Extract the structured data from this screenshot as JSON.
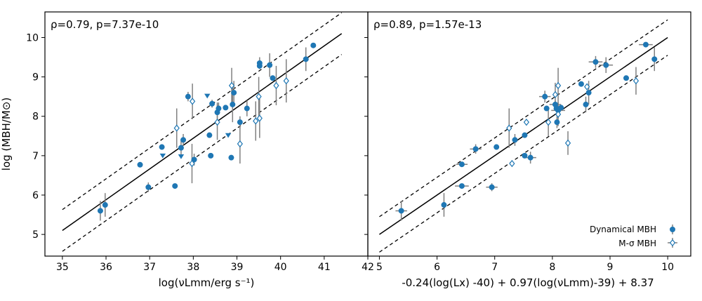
{
  "chart_data": [
    {
      "type": "scatter",
      "annotation": "ρ=0.79, p=7.37e-10",
      "xlabel": "log(νLmm/erg s⁻¹)",
      "ylabel": "log (MBH/M⊙)",
      "xlim": [
        34.6,
        42.0
      ],
      "ylim": [
        4.45,
        10.65
      ],
      "xticks": [
        35,
        36,
        37,
        38,
        39,
        40,
        41,
        42
      ],
      "yticks": [
        5,
        6,
        7,
        8,
        9,
        10
      ],
      "fit_line": [
        [
          35.0,
          5.1
        ],
        [
          41.4,
          10.1
        ]
      ],
      "scatter_offset": 0.53,
      "series": [
        {
          "marker": "filled-circle",
          "points": [
            {
              "x": 35.87,
              "y": 5.6,
              "err": 0.25
            },
            {
              "x": 35.98,
              "y": 5.75,
              "err": 0.3
            },
            {
              "x": 36.78,
              "y": 6.77
            },
            {
              "x": 36.97,
              "y": 6.2,
              "err": 0.12
            },
            {
              "x": 37.28,
              "y": 7.22
            },
            {
              "x": 37.58,
              "y": 6.23
            },
            {
              "x": 37.72,
              "y": 7.2,
              "err": 0.2
            },
            {
              "x": 37.77,
              "y": 7.4,
              "err": 0.15
            },
            {
              "x": 37.88,
              "y": 8.5,
              "err": 0.12
            },
            {
              "x": 38.02,
              "y": 6.9,
              "err": 0.15
            },
            {
              "x": 38.37,
              "y": 7.52
            },
            {
              "x": 38.4,
              "y": 7.0
            },
            {
              "x": 38.43,
              "y": 8.32,
              "err": 0.1
            },
            {
              "x": 38.55,
              "y": 8.1,
              "err": 0.25
            },
            {
              "x": 38.58,
              "y": 8.2,
              "err": 0.15
            },
            {
              "x": 38.74,
              "y": 8.22
            },
            {
              "x": 38.87,
              "y": 6.95
            },
            {
              "x": 38.9,
              "y": 8.3,
              "err": 0.45
            },
            {
              "x": 38.93,
              "y": 8.6,
              "err": 0.3
            },
            {
              "x": 39.07,
              "y": 7.85,
              "err": 0.15
            },
            {
              "x": 39.23,
              "y": 8.2,
              "err": 0.2
            },
            {
              "x": 39.52,
              "y": 9.35,
              "err": 0.15
            },
            {
              "x": 39.52,
              "y": 9.28
            },
            {
              "x": 39.75,
              "y": 9.3,
              "err": 0.3
            },
            {
              "x": 39.82,
              "y": 8.97
            },
            {
              "x": 40.58,
              "y": 9.45,
              "err": 0.3
            },
            {
              "x": 40.75,
              "y": 9.8
            }
          ]
        },
        {
          "marker": "triangle-down",
          "points": [
            {
              "x": 37.3,
              "y": 7.0
            },
            {
              "x": 37.72,
              "y": 6.98
            },
            {
              "x": 38.32,
              "y": 8.52
            },
            {
              "x": 38.8,
              "y": 7.52
            }
          ]
        },
        {
          "marker": "open-diamond",
          "points": [
            {
              "x": 37.62,
              "y": 7.7,
              "err": 0.5
            },
            {
              "x": 37.97,
              "y": 6.8,
              "err": 0.5
            },
            {
              "x": 37.98,
              "y": 8.38,
              "err": 0.45
            },
            {
              "x": 38.55,
              "y": 7.85,
              "err": 0.45
            },
            {
              "x": 38.88,
              "y": 8.78,
              "err": 0.45
            },
            {
              "x": 39.07,
              "y": 7.3,
              "err": 0.5
            },
            {
              "x": 39.43,
              "y": 7.88,
              "err": 0.5
            },
            {
              "x": 39.52,
              "y": 7.95,
              "err": 0.5
            },
            {
              "x": 39.5,
              "y": 8.5,
              "err": 0.5
            },
            {
              "x": 39.9,
              "y": 8.78,
              "err": 0.5
            },
            {
              "x": 40.13,
              "y": 8.9,
              "err": 0.55
            }
          ]
        }
      ]
    },
    {
      "type": "scatter",
      "annotation": "ρ=0.89, p=1.57e-13",
      "xlabel": "-0.24(log(Lx) -40) + 0.97(log(νLmm)-39) + 8.37",
      "ylabel": "",
      "xlim": [
        4.8,
        10.4
      ],
      "ylim": [
        4.45,
        10.65
      ],
      "xticks": [
        5,
        6,
        7,
        8,
        9,
        10
      ],
      "yticks": [
        5,
        6,
        7,
        8,
        9,
        10
      ],
      "fit_line": [
        [
          5.0,
          5.0
        ],
        [
          10.0,
          10.0
        ]
      ],
      "scatter_offset": 0.45,
      "legend": {
        "position": "lower-right",
        "entries": [
          {
            "label": "Dynamical MBH",
            "marker": "filled-circle"
          },
          {
            "label": "M-σ MBH",
            "marker": "open-diamond"
          }
        ]
      },
      "series": [
        {
          "name": "Dynamical MBH",
          "marker": "filled-circle",
          "points": [
            {
              "x": 5.38,
              "y": 5.6,
              "err": 0.25,
              "xerr": 0.1
            },
            {
              "x": 6.12,
              "y": 5.75,
              "err": 0.3
            },
            {
              "x": 6.43,
              "y": 6.78,
              "xerr": 0.1
            },
            {
              "x": 6.43,
              "y": 6.23,
              "xerr": 0.12
            },
            {
              "x": 6.67,
              "y": 7.17,
              "err": 0.12,
              "xerr": 0.1
            },
            {
              "x": 6.95,
              "y": 6.2,
              "err": 0.1,
              "xerr": 0.1
            },
            {
              "x": 7.03,
              "y": 7.22
            },
            {
              "x": 7.35,
              "y": 7.4,
              "err": 0.15
            },
            {
              "x": 7.52,
              "y": 7.52
            },
            {
              "x": 7.52,
              "y": 7.0
            },
            {
              "x": 7.62,
              "y": 6.95,
              "err": 0.15,
              "xerr": 0.1
            },
            {
              "x": 7.87,
              "y": 8.5,
              "err": 0.15,
              "xerr": 0.1
            },
            {
              "x": 7.9,
              "y": 8.2
            },
            {
              "x": 8.05,
              "y": 8.3,
              "err": 0.1,
              "xerr": 0.1
            },
            {
              "x": 8.07,
              "y": 8.2
            },
            {
              "x": 8.08,
              "y": 7.85,
              "err": 0.15
            },
            {
              "x": 8.1,
              "y": 8.15,
              "err": 0.2,
              "xerr": 0.12
            },
            {
              "x": 8.15,
              "y": 8.22
            },
            {
              "x": 8.5,
              "y": 8.82
            },
            {
              "x": 8.58,
              "y": 8.3,
              "err": 0.2
            },
            {
              "x": 8.63,
              "y": 8.6,
              "err": 0.3
            },
            {
              "x": 8.75,
              "y": 9.38,
              "err": 0.15,
              "xerr": 0.12
            },
            {
              "x": 8.93,
              "y": 9.3,
              "err": 0.2,
              "xerr": 0.12
            },
            {
              "x": 9.28,
              "y": 8.97
            },
            {
              "x": 9.62,
              "y": 9.82,
              "xerr": 0.12
            },
            {
              "x": 9.77,
              "y": 9.45,
              "err": 0.3
            }
          ]
        },
        {
          "name": "M-σ MBH",
          "marker": "open-diamond",
          "points": [
            {
              "x": 7.25,
              "y": 7.7,
              "err": 0.5
            },
            {
              "x": 7.3,
              "y": 6.8
            },
            {
              "x": 7.55,
              "y": 7.85
            },
            {
              "x": 7.93,
              "y": 7.85,
              "err": 0.35
            },
            {
              "x": 8.05,
              "y": 8.55,
              "err": 0.3
            },
            {
              "x": 8.1,
              "y": 8.78,
              "err": 0.45
            },
            {
              "x": 8.1,
              "y": 8.05,
              "err": 0.3
            },
            {
              "x": 8.27,
              "y": 7.32,
              "err": 0.3
            },
            {
              "x": 8.6,
              "y": 8.75
            },
            {
              "x": 9.45,
              "y": 8.9,
              "err": 0.35
            }
          ]
        }
      ]
    }
  ]
}
